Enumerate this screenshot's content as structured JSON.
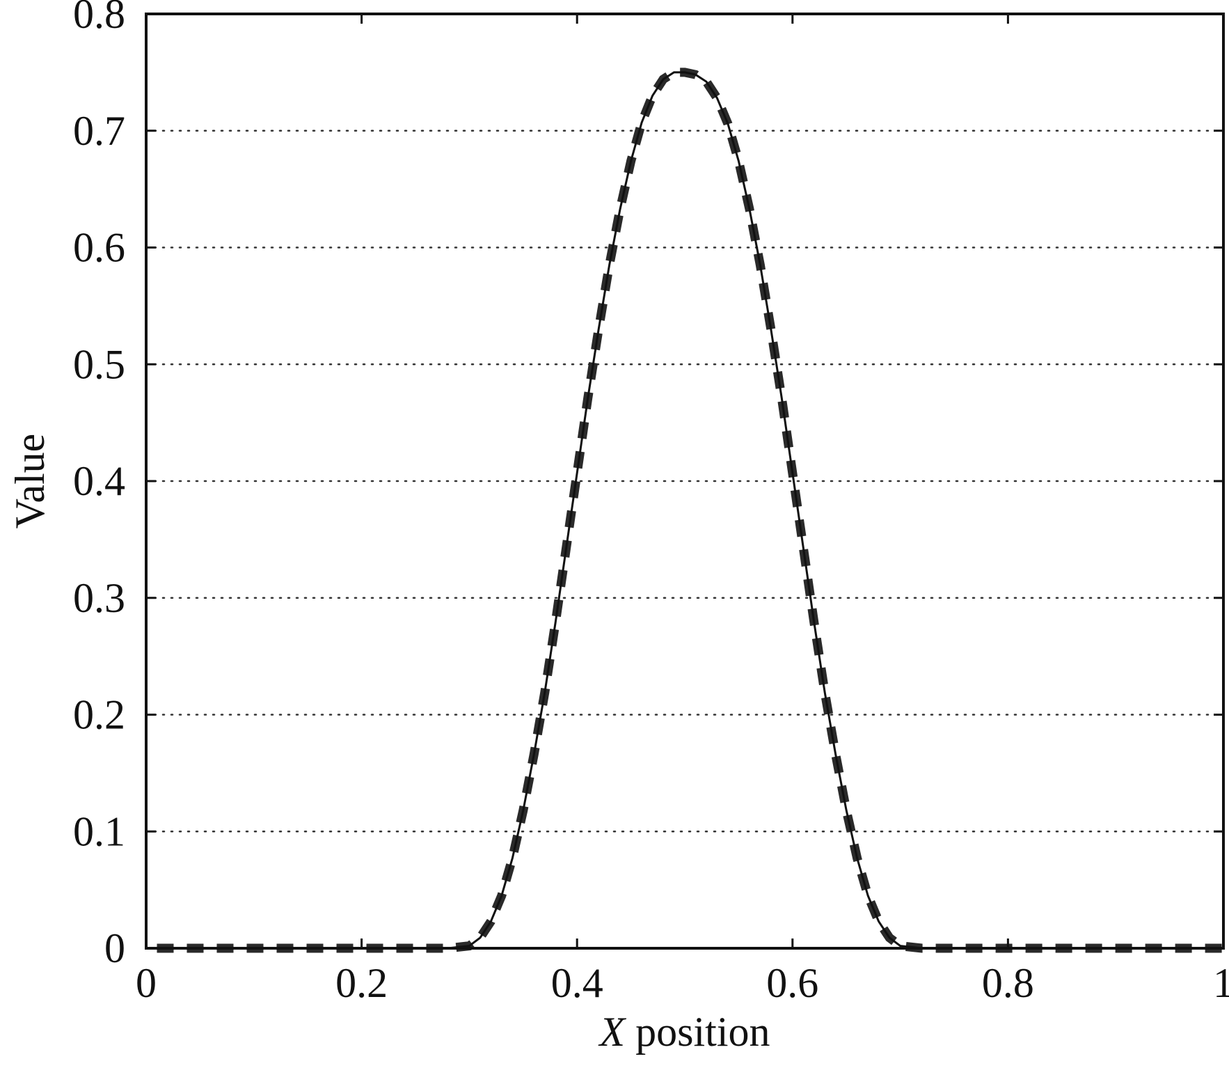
{
  "chart_data": {
    "type": "line",
    "title": "",
    "xlabel_italic": "X",
    "xlabel_rest": " position",
    "ylabel": "Value",
    "xlim": [
      0,
      1
    ],
    "ylim": [
      0,
      0.8
    ],
    "xticks": [
      {
        "value": 0,
        "label": "0"
      },
      {
        "value": 0.2,
        "label": "0.2"
      },
      {
        "value": 0.4,
        "label": "0.4"
      },
      {
        "value": 0.6,
        "label": "0.6"
      },
      {
        "value": 0.8,
        "label": "0.8"
      },
      {
        "value": 1,
        "label": "1"
      }
    ],
    "yticks": [
      {
        "value": 0,
        "label": "0"
      },
      {
        "value": 0.1,
        "label": "0.1"
      },
      {
        "value": 0.2,
        "label": "0.2"
      },
      {
        "value": 0.3,
        "label": "0.3"
      },
      {
        "value": 0.4,
        "label": "0.4"
      },
      {
        "value": 0.5,
        "label": "0.5"
      },
      {
        "value": 0.6,
        "label": "0.6"
      },
      {
        "value": 0.7,
        "label": "0.7"
      },
      {
        "value": 0.8,
        "label": "0.8"
      }
    ],
    "grid": "horizontal dotted",
    "legend": "none",
    "series": [
      {
        "style": "solid thin",
        "color": "#111111",
        "x": [
          0.0,
          0.05,
          0.1,
          0.15,
          0.2,
          0.25,
          0.28,
          0.3,
          0.31,
          0.32,
          0.33,
          0.34,
          0.35,
          0.36,
          0.37,
          0.38,
          0.39,
          0.4,
          0.41,
          0.42,
          0.43,
          0.44,
          0.45,
          0.46,
          0.47,
          0.48,
          0.49,
          0.5,
          0.51,
          0.52,
          0.53,
          0.54,
          0.55,
          0.56,
          0.57,
          0.58,
          0.59,
          0.6,
          0.61,
          0.62,
          0.63,
          0.64,
          0.65,
          0.66,
          0.67,
          0.68,
          0.69,
          0.7,
          0.72,
          0.75,
          0.8,
          0.85,
          0.9,
          0.95,
          1.0
        ],
        "y": [
          0.0,
          0.0,
          0.0,
          0.0,
          0.0,
          0.0,
          0.0,
          0.002,
          0.009,
          0.023,
          0.045,
          0.077,
          0.118,
          0.166,
          0.219,
          0.279,
          0.343,
          0.407,
          0.471,
          0.53,
          0.585,
          0.633,
          0.674,
          0.707,
          0.73,
          0.744,
          0.75,
          0.75,
          0.748,
          0.742,
          0.728,
          0.706,
          0.674,
          0.633,
          0.585,
          0.53,
          0.471,
          0.407,
          0.343,
          0.279,
          0.219,
          0.166,
          0.118,
          0.077,
          0.045,
          0.023,
          0.009,
          0.002,
          0.0,
          0.0,
          0.0,
          0.0,
          0.0,
          0.0,
          0.0
        ]
      },
      {
        "style": "thick dashed",
        "color": "#2a2a2a",
        "x": [
          0.01,
          0.05,
          0.1,
          0.15,
          0.2,
          0.25,
          0.28,
          0.3,
          0.31,
          0.32,
          0.33,
          0.34,
          0.35,
          0.36,
          0.37,
          0.38,
          0.39,
          0.4,
          0.41,
          0.42,
          0.43,
          0.44,
          0.45,
          0.46,
          0.47,
          0.48,
          0.49,
          0.5,
          0.51,
          0.52,
          0.53,
          0.54,
          0.55,
          0.56,
          0.57,
          0.58,
          0.59,
          0.6,
          0.61,
          0.62,
          0.63,
          0.64,
          0.65,
          0.66,
          0.67,
          0.68,
          0.69,
          0.7,
          0.72,
          0.75,
          0.8,
          0.85,
          0.9,
          0.95,
          1.0
        ],
        "y": [
          0.0,
          0.0,
          0.0,
          0.0,
          0.0,
          0.0,
          0.0,
          0.002,
          0.009,
          0.023,
          0.045,
          0.077,
          0.118,
          0.166,
          0.219,
          0.279,
          0.343,
          0.407,
          0.471,
          0.53,
          0.585,
          0.633,
          0.674,
          0.707,
          0.73,
          0.744,
          0.75,
          0.75,
          0.748,
          0.742,
          0.728,
          0.706,
          0.674,
          0.633,
          0.585,
          0.53,
          0.471,
          0.407,
          0.343,
          0.279,
          0.219,
          0.166,
          0.118,
          0.077,
          0.045,
          0.023,
          0.009,
          0.002,
          0.0,
          0.0,
          0.0,
          0.0,
          0.0,
          0.0,
          0.0
        ]
      }
    ]
  }
}
